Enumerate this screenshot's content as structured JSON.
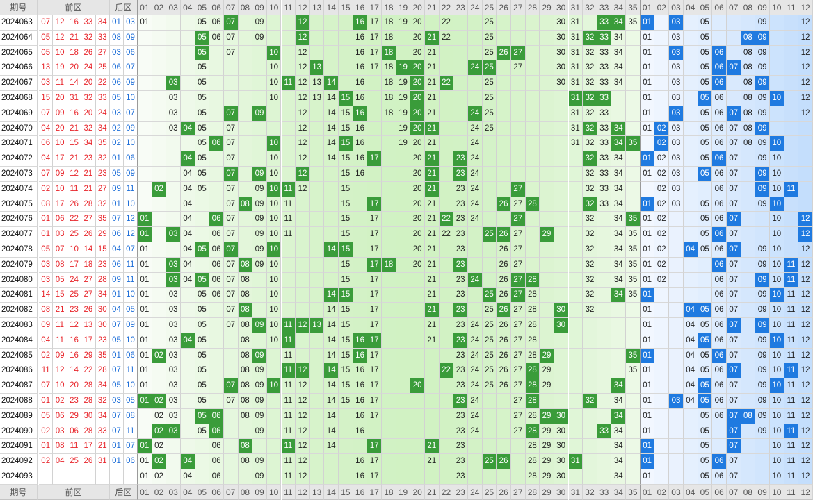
{
  "header": {
    "issue": "期号",
    "front": "前区",
    "back": "后区"
  },
  "front_cols": [
    "01",
    "02",
    "03",
    "04",
    "05",
    "06",
    "07",
    "08",
    "09",
    "10",
    "11",
    "12",
    "13",
    "14",
    "15",
    "16",
    "17",
    "18",
    "19",
    "20",
    "21",
    "22",
    "23",
    "24",
    "25",
    "26",
    "27",
    "28",
    "29",
    "30",
    "31",
    "32",
    "33",
    "34",
    "35"
  ],
  "back_cols": [
    "01",
    "02",
    "03",
    "04",
    "05",
    "06",
    "07",
    "08",
    "09",
    "10",
    "11",
    "12"
  ],
  "colors": {
    "red_number": "#e8262c",
    "blue_number": "#1f6fd8",
    "green_hit": "#3a9c3a",
    "blue_hit": "#1f7ae0",
    "grid_line": "#d2d2d2",
    "header_bg": "#e6e6e6"
  },
  "rows": [
    {
      "issue": "2024063",
      "front": [
        "07",
        "12",
        "16",
        "33",
        "34"
      ],
      "back": [
        "01",
        "03"
      ],
      "fc": [
        "01",
        "05",
        "06",
        "07",
        "09",
        "16",
        "17",
        "18",
        "19",
        "20",
        "22",
        "25",
        "30",
        "31",
        "33",
        "34",
        "35"
      ],
      "bc": [
        "01",
        "03",
        "05",
        "09",
        "12"
      ]
    },
    {
      "issue": "2024064",
      "front": [
        "05",
        "12",
        "21",
        "32",
        "33"
      ],
      "back": [
        "08",
        "09"
      ],
      "fc": [
        "05",
        "06",
        "07",
        "09",
        "12",
        "16",
        "17",
        "18",
        "20",
        "22",
        "25",
        "30",
        "31",
        "33",
        "34"
      ],
      "bc": [
        "01",
        "03",
        "05",
        "12"
      ]
    },
    {
      "issue": "2024065",
      "front": [
        "05",
        "10",
        "18",
        "26",
        "27"
      ],
      "back": [
        "03",
        "06"
      ],
      "fc": [
        "05",
        "07",
        "12",
        "16",
        "17",
        "18",
        "20",
        "21",
        "25",
        "30",
        "31",
        "32",
        "33",
        "34"
      ],
      "bc": [
        "01",
        "03",
        "05",
        "08",
        "09",
        "12"
      ]
    },
    {
      "issue": "2024066",
      "front": [
        "13",
        "19",
        "20",
        "24",
        "25"
      ],
      "back": [
        "06",
        "07"
      ],
      "fc": [
        "05",
        "10",
        "12",
        "16",
        "17",
        "18",
        "20",
        "21",
        "25",
        "27",
        "30",
        "31",
        "32",
        "33",
        "34"
      ],
      "bc": [
        "01",
        "03",
        "05",
        "06",
        "08",
        "09",
        "12"
      ]
    },
    {
      "issue": "2024067",
      "front": [
        "03",
        "11",
        "14",
        "20",
        "22"
      ],
      "back": [
        "06",
        "09"
      ],
      "fc": [
        "05",
        "10",
        "12",
        "13",
        "16",
        "18",
        "19",
        "20",
        "21",
        "25",
        "30",
        "31",
        "32",
        "33",
        "34"
      ],
      "bc": [
        "01",
        "03",
        "05",
        "06",
        "08",
        "09",
        "12"
      ]
    },
    {
      "issue": "2024068",
      "front": [
        "15",
        "20",
        "31",
        "32",
        "33"
      ],
      "back": [
        "05",
        "10"
      ],
      "fc": [
        "03",
        "05",
        "10",
        "12",
        "13",
        "14",
        "16",
        "18",
        "19",
        "20",
        "21",
        "25",
        "31",
        "32",
        "33"
      ],
      "bc": [
        "01",
        "03",
        "05",
        "06",
        "08",
        "09",
        "12"
      ]
    },
    {
      "issue": "2024069",
      "front": [
        "07",
        "09",
        "16",
        "20",
        "24"
      ],
      "back": [
        "03",
        "07"
      ],
      "fc": [
        "03",
        "05",
        "12",
        "14",
        "15",
        "16",
        "18",
        "19",
        "20",
        "21",
        "25",
        "31",
        "32",
        "33"
      ],
      "bc": [
        "01",
        "03",
        "05",
        "06",
        "08",
        "09",
        "12"
      ]
    },
    {
      "issue": "2024070",
      "front": [
        "04",
        "20",
        "21",
        "32",
        "34"
      ],
      "back": [
        "02",
        "09"
      ],
      "fc": [
        "03",
        "05",
        "07",
        "12",
        "14",
        "15",
        "16",
        "19",
        "20",
        "21",
        "24",
        "25",
        "31",
        "32",
        "33"
      ],
      "bc": [
        "01",
        "03",
        "05",
        "06",
        "07",
        "08",
        "09"
      ]
    },
    {
      "issue": "2024071",
      "front": [
        "06",
        "10",
        "15",
        "34",
        "35"
      ],
      "back": [
        "02",
        "10"
      ],
      "fc": [
        "05",
        "07",
        "12",
        "14",
        "15",
        "16",
        "19",
        "20",
        "21",
        "24",
        "31",
        "32",
        "33",
        "34"
      ],
      "bc": [
        "03",
        "05",
        "06",
        "07",
        "08",
        "09"
      ]
    },
    {
      "issue": "2024072",
      "front": [
        "04",
        "17",
        "21",
        "23",
        "32"
      ],
      "back": [
        "01",
        "06"
      ],
      "fc": [
        "05",
        "07",
        "10",
        "12",
        "14",
        "15",
        "16",
        "20",
        "21",
        "24",
        "32",
        "33",
        "34"
      ],
      "bc": [
        "02",
        "03",
        "05",
        "06",
        "07",
        "09",
        "10"
      ]
    },
    {
      "issue": "2024073",
      "front": [
        "07",
        "09",
        "12",
        "21",
        "23"
      ],
      "back": [
        "05",
        "09"
      ],
      "fc": [
        "04",
        "05",
        "07",
        "10",
        "12",
        "15",
        "16",
        "20",
        "21",
        "24",
        "32",
        "33",
        "34"
      ],
      "bc": [
        "01",
        "02",
        "03",
        "06",
        "07",
        "09",
        "10"
      ]
    },
    {
      "issue": "2024074",
      "front": [
        "02",
        "10",
        "11",
        "21",
        "27"
      ],
      "back": [
        "09",
        "11"
      ],
      "fc": [
        "04",
        "05",
        "07",
        "09",
        "10",
        "12",
        "15",
        "20",
        "21",
        "23",
        "24",
        "32",
        "33",
        "34"
      ],
      "bc": [
        "02",
        "03",
        "06",
        "07",
        "09",
        "10"
      ]
    },
    {
      "issue": "2024075",
      "front": [
        "08",
        "17",
        "26",
        "28",
        "32"
      ],
      "back": [
        "01",
        "10"
      ],
      "fc": [
        "04",
        "07",
        "09",
        "10",
        "11",
        "15",
        "20",
        "21",
        "23",
        "24",
        "27",
        "32",
        "33",
        "34"
      ],
      "bc": [
        "02",
        "03",
        "05",
        "06",
        "07",
        "09",
        "10"
      ]
    },
    {
      "issue": "2024076",
      "front": [
        "01",
        "06",
        "22",
        "27",
        "35"
      ],
      "back": [
        "07",
        "12"
      ],
      "fc": [
        "04",
        "07",
        "09",
        "10",
        "11",
        "15",
        "17",
        "20",
        "21",
        "23",
        "24",
        "27",
        "32",
        "34"
      ],
      "bc": [
        "01",
        "02",
        "05",
        "06",
        "07",
        "10",
        "12"
      ]
    },
    {
      "issue": "2024077",
      "front": [
        "01",
        "03",
        "25",
        "26",
        "29"
      ],
      "back": [
        "06",
        "12"
      ],
      "fc": [
        "04",
        "06",
        "07",
        "09",
        "10",
        "11",
        "15",
        "17",
        "20",
        "21",
        "22",
        "23",
        "27",
        "32",
        "34",
        "35"
      ],
      "bc": [
        "01",
        "02",
        "05",
        "06",
        "07",
        "10",
        "12"
      ]
    },
    {
      "issue": "2024078",
      "front": [
        "05",
        "07",
        "10",
        "14",
        "15"
      ],
      "back": [
        "04",
        "07"
      ],
      "fc": [
        "01",
        "04",
        "06",
        "07",
        "09",
        "10",
        "15",
        "17",
        "20",
        "21",
        "23",
        "26",
        "27",
        "32",
        "34",
        "35"
      ],
      "bc": [
        "01",
        "02",
        "05",
        "06",
        "07",
        "09",
        "10",
        "12"
      ]
    },
    {
      "issue": "2024079",
      "front": [
        "03",
        "08",
        "17",
        "18",
        "23"
      ],
      "back": [
        "06",
        "11"
      ],
      "fc": [
        "01",
        "04",
        "06",
        "07",
        "09",
        "10",
        "15",
        "17",
        "20",
        "21",
        "23",
        "26",
        "27",
        "32",
        "34",
        "35"
      ],
      "bc": [
        "01",
        "02",
        "06",
        "07",
        "09",
        "10",
        "12"
      ]
    },
    {
      "issue": "2024080",
      "front": [
        "03",
        "05",
        "24",
        "27",
        "28"
      ],
      "back": [
        "09",
        "11"
      ],
      "fc": [
        "01",
        "03",
        "04",
        "06",
        "07",
        "08",
        "10",
        "15",
        "17",
        "21",
        "23",
        "26",
        "27",
        "32",
        "34",
        "35"
      ],
      "bc": [
        "01",
        "02",
        "06",
        "07",
        "09",
        "10",
        "11",
        "12"
      ]
    },
    {
      "issue": "2024081",
      "front": [
        "14",
        "15",
        "25",
        "27",
        "34"
      ],
      "back": [
        "01",
        "10"
      ],
      "fc": [
        "01",
        "03",
        "05",
        "06",
        "07",
        "08",
        "10",
        "15",
        "17",
        "21",
        "23",
        "26",
        "27",
        "28",
        "32",
        "35"
      ],
      "bc": [
        "01",
        "06",
        "07",
        "09",
        "10",
        "11",
        "12"
      ]
    },
    {
      "issue": "2024082",
      "front": [
        "08",
        "21",
        "23",
        "26",
        "30"
      ],
      "back": [
        "04",
        "05"
      ],
      "fc": [
        "01",
        "03",
        "05",
        "07",
        "08",
        "10",
        "14",
        "15",
        "17",
        "21",
        "23",
        "25",
        "26",
        "27",
        "28",
        "32"
      ],
      "bc": [
        "01",
        "06",
        "07",
        "09",
        "10",
        "11",
        "12"
      ]
    },
    {
      "issue": "2024083",
      "front": [
        "09",
        "11",
        "12",
        "13",
        "30"
      ],
      "back": [
        "07",
        "09"
      ],
      "fc": [
        "01",
        "03",
        "05",
        "07",
        "08",
        "10",
        "14",
        "15",
        "17",
        "21",
        "23",
        "24",
        "25",
        "26",
        "27",
        "28"
      ],
      "bc": [
        "01",
        "04",
        "05",
        "06",
        "07",
        "09",
        "10",
        "11",
        "12"
      ]
    },
    {
      "issue": "2024084",
      "front": [
        "04",
        "11",
        "16",
        "17",
        "23"
      ],
      "back": [
        "05",
        "10"
      ],
      "fc": [
        "01",
        "03",
        "05",
        "08",
        "10",
        "11",
        "14",
        "15",
        "17",
        "21",
        "23",
        "24",
        "25",
        "26",
        "27",
        "28"
      ],
      "bc": [
        "01",
        "04",
        "06",
        "07",
        "09",
        "10",
        "11",
        "12"
      ]
    },
    {
      "issue": "2024085",
      "front": [
        "02",
        "09",
        "16",
        "29",
        "35"
      ],
      "back": [
        "01",
        "06"
      ],
      "fc": [
        "01",
        "03",
        "05",
        "08",
        "11",
        "14",
        "15",
        "17",
        "23",
        "24",
        "25",
        "26",
        "27",
        "28"
      ],
      "bc": [
        "01",
        "04",
        "05",
        "06",
        "07",
        "09",
        "10",
        "11",
        "12"
      ]
    },
    {
      "issue": "2024086",
      "front": [
        "11",
        "12",
        "14",
        "22",
        "28"
      ],
      "back": [
        "07",
        "11"
      ],
      "fc": [
        "01",
        "03",
        "05",
        "08",
        "09",
        "11",
        "14",
        "15",
        "16",
        "17",
        "23",
        "24",
        "25",
        "26",
        "27",
        "28",
        "29",
        "35"
      ],
      "bc": [
        "01",
        "04",
        "05",
        "06",
        "07",
        "09",
        "10",
        "11",
        "12"
      ]
    },
    {
      "issue": "2024087",
      "front": [
        "07",
        "10",
        "20",
        "28",
        "34"
      ],
      "back": [
        "05",
        "10"
      ],
      "fc": [
        "01",
        "03",
        "05",
        "08",
        "09",
        "11",
        "12",
        "14",
        "15",
        "16",
        "17",
        "23",
        "24",
        "25",
        "26",
        "27",
        "28",
        "29"
      ],
      "bc": [
        "01",
        "04",
        "05",
        "06",
        "07",
        "09",
        "10",
        "11",
        "12"
      ]
    },
    {
      "issue": "2024088",
      "front": [
        "01",
        "02",
        "23",
        "28",
        "32"
      ],
      "back": [
        "03",
        "05"
      ],
      "fc": [
        "01",
        "03",
        "05",
        "07",
        "08",
        "09",
        "11",
        "12",
        "14",
        "15",
        "16",
        "17",
        "23",
        "24",
        "27",
        "28",
        "34"
      ],
      "bc": [
        "01",
        "04",
        "05",
        "06",
        "07",
        "09",
        "10",
        "11",
        "12"
      ]
    },
    {
      "issue": "2024089",
      "front": [
        "05",
        "06",
        "29",
        "30",
        "34"
      ],
      "back": [
        "07",
        "08"
      ],
      "fc": [
        "02",
        "03",
        "08",
        "09",
        "11",
        "12",
        "14",
        "16",
        "17",
        "23",
        "24",
        "27",
        "28",
        "34"
      ],
      "bc": [
        "01",
        "05",
        "06",
        "07",
        "09",
        "10",
        "11",
        "12"
      ]
    },
    {
      "issue": "2024090",
      "front": [
        "02",
        "03",
        "06",
        "28",
        "33"
      ],
      "back": [
        "07",
        "11"
      ],
      "fc": [
        "02",
        "05",
        "09",
        "11",
        "12",
        "14",
        "16",
        "23",
        "24",
        "27",
        "28",
        "29",
        "30",
        "34"
      ],
      "bc": [
        "01",
        "05",
        "07",
        "09",
        "10",
        "11",
        "12"
      ]
    },
    {
      "issue": "2024091",
      "front": [
        "01",
        "08",
        "11",
        "17",
        "21"
      ],
      "back": [
        "01",
        "07"
      ],
      "fc": [
        "02",
        "06",
        "11",
        "12",
        "14",
        "23",
        "28",
        "29",
        "30",
        "34"
      ],
      "bc": [
        "01",
        "05",
        "07",
        "10",
        "11",
        "12"
      ]
    },
    {
      "issue": "2024092",
      "front": [
        "02",
        "04",
        "25",
        "26",
        "31"
      ],
      "back": [
        "01",
        "06"
      ],
      "fc": [
        "01",
        "02",
        "06",
        "08",
        "09",
        "11",
        "12",
        "16",
        "17",
        "21",
        "23",
        "28",
        "29",
        "30",
        "34"
      ],
      "bc": [
        "01",
        "05",
        "07",
        "10",
        "11",
        "12"
      ]
    },
    {
      "issue": "2024093",
      "front": [],
      "back": [],
      "fc": [
        "01",
        "02",
        "04",
        "06",
        "09",
        "11",
        "12",
        "16",
        "17",
        "23",
        "28",
        "29",
        "30",
        "34"
      ],
      "bc": [
        "01",
        "05",
        "06",
        "07",
        "10",
        "11",
        "12"
      ]
    }
  ]
}
